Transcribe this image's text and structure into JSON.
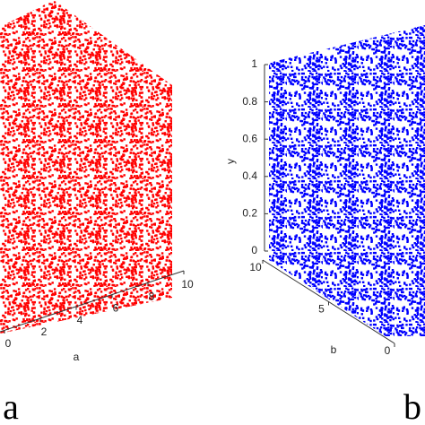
{
  "chart_data": [
    {
      "type": "scatter3d",
      "panel_label": "a",
      "color": "#ff0000",
      "xlabel": "a",
      "xlim": [
        0,
        10
      ],
      "xticks": [
        0,
        2,
        4,
        6,
        8,
        10
      ]
    },
    {
      "type": "scatter3d",
      "panel_label": "b",
      "color": "#0000ff",
      "xlabel": "b",
      "zlabel": "y",
      "xlim": [
        0,
        10
      ],
      "xticks": [
        0,
        5,
        10
      ],
      "zlim": [
        0,
        1
      ],
      "zticks": [
        0,
        0.2,
        0.4,
        0.6,
        0.8,
        1
      ]
    }
  ]
}
